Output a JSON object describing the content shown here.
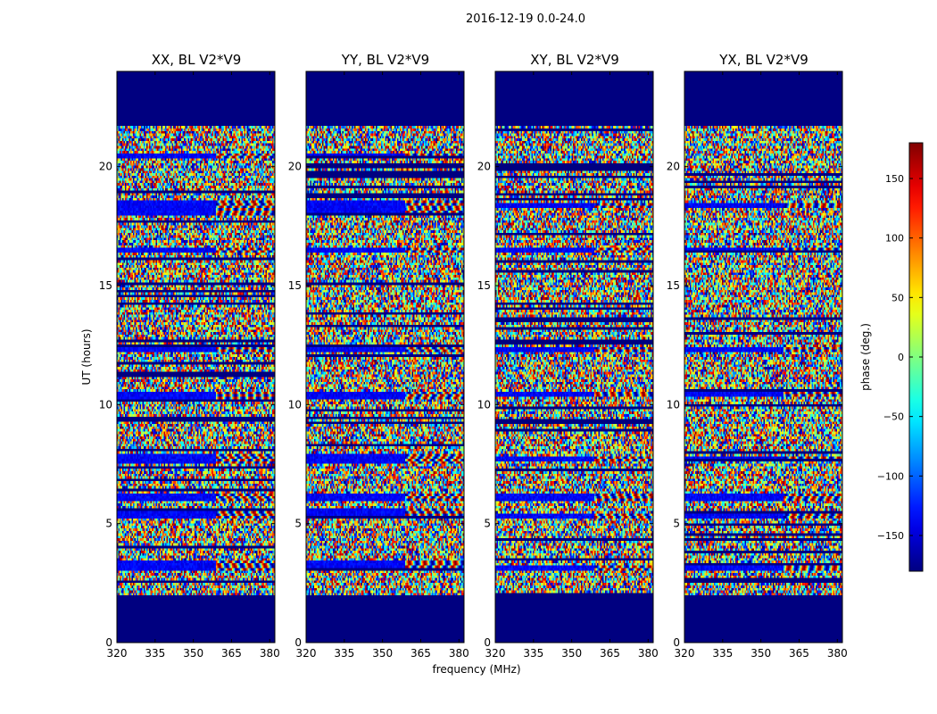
{
  "figure_title": "2016-12-19 0.0-24.0",
  "colorbar_label": "phase (deg.)",
  "colors": {
    "background": "#ffffff",
    "axes": "#000000",
    "cmap_low": "#00007f",
    "cmap_high": "#7f0000"
  },
  "chart_data": {
    "type": "heatmap",
    "colormap": "jet",
    "suptitle": "2016-12-19 0.0-24.0",
    "xlabel": "frequency (MHz)",
    "ylabel": "UT (hours)",
    "xlim": [
      320,
      382
    ],
    "ylim": [
      0,
      24
    ],
    "xticks": [
      320,
      335,
      350,
      365,
      380
    ],
    "yticks": [
      0,
      5,
      10,
      15,
      20
    ],
    "clim": [
      -180,
      180
    ],
    "colorbar": {
      "label": "phase (deg.)",
      "ticks": [
        -150,
        -100,
        -50,
        0,
        50,
        100,
        150
      ]
    },
    "panels": [
      {
        "title": "XX, BL V2*V9",
        "data_hours": [
          2.0,
          21.7
        ],
        "coherent_bands_hours": [
          [
            3.0,
            3.4
          ],
          [
            5.2,
            5.6
          ],
          [
            6.0,
            6.3
          ],
          [
            7.5,
            7.9
          ],
          [
            10.2,
            10.5
          ],
          [
            12.2,
            12.4
          ],
          [
            16.4,
            16.6
          ],
          [
            18.0,
            18.6
          ],
          [
            20.3,
            20.6
          ]
        ]
      },
      {
        "title": "YY, BL V2*V9",
        "data_hours": [
          2.0,
          21.7
        ],
        "coherent_bands_hours": [
          [
            3.0,
            3.4
          ],
          [
            5.2,
            5.6
          ],
          [
            6.0,
            6.3
          ],
          [
            7.5,
            7.9
          ],
          [
            10.2,
            10.5
          ],
          [
            12.2,
            12.4
          ],
          [
            16.4,
            16.6
          ],
          [
            18.0,
            18.6
          ],
          [
            20.3,
            20.6
          ]
        ]
      },
      {
        "title": "XY, BL V2*V9",
        "data_hours": [
          2.0,
          21.7
        ],
        "coherent_bands_hours": [
          [
            3.0,
            3.2
          ],
          [
            5.2,
            5.4
          ],
          [
            6.0,
            6.3
          ],
          [
            7.6,
            7.8
          ],
          [
            10.3,
            10.5
          ],
          [
            12.2,
            12.4
          ],
          [
            16.4,
            16.6
          ],
          [
            18.3,
            18.5
          ]
        ]
      },
      {
        "title": "YX, BL V2*V9",
        "data_hours": [
          2.0,
          21.7
        ],
        "coherent_bands_hours": [
          [
            3.0,
            3.2
          ],
          [
            5.2,
            5.4
          ],
          [
            6.0,
            6.3
          ],
          [
            7.6,
            7.8
          ],
          [
            10.3,
            10.5
          ],
          [
            12.2,
            12.4
          ],
          [
            16.4,
            16.6
          ],
          [
            18.3,
            18.5
          ]
        ]
      }
    ]
  }
}
